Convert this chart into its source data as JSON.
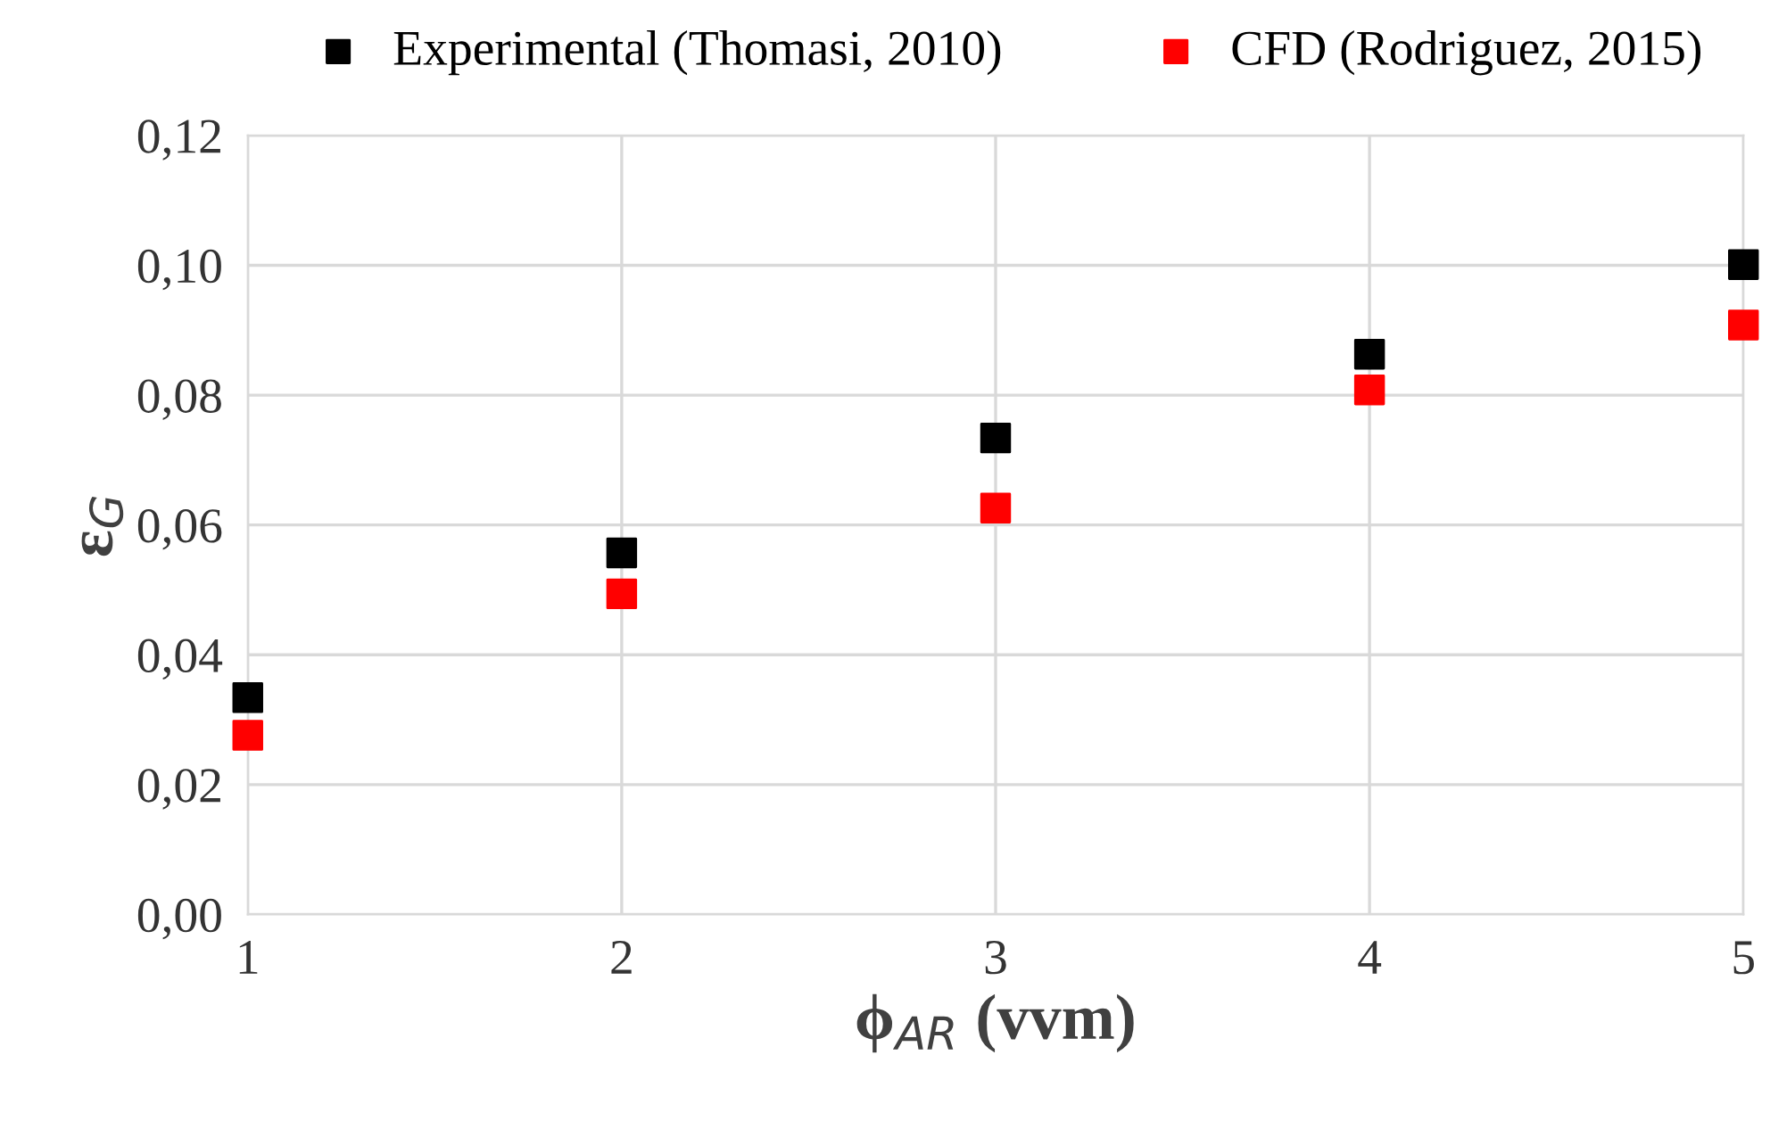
{
  "chart_data": {
    "type": "scatter",
    "xlabel": "ϕ$_{AR}$ (vvm)",
    "ylabel": "ε$_{G}$",
    "x": [
      1,
      2,
      3,
      4,
      5
    ],
    "series": [
      {
        "name": "Experimental (Thomasi, 2010)",
        "color": "#000000",
        "values": [
          0.0334,
          0.0557,
          0.0734,
          0.0863,
          0.1001
        ]
      },
      {
        "name": "CFD (Rodriguez, 2015)",
        "color": "#ff0000",
        "values": [
          0.0276,
          0.0494,
          0.0626,
          0.0808,
          0.0908
        ]
      }
    ],
    "xlim": [
      1,
      5
    ],
    "xticks": [
      1,
      2,
      3,
      4,
      5
    ],
    "ylim": [
      0,
      0.12
    ],
    "yticks": [
      {
        "value": 0,
        "label": "0,00"
      },
      {
        "value": 0.02,
        "label": "0,02"
      },
      {
        "value": 0.04,
        "label": "0,04"
      },
      {
        "value": 0.06,
        "label": "0,06"
      },
      {
        "value": 0.08,
        "label": "0,08"
      },
      {
        "value": 0.1,
        "label": "0,10"
      },
      {
        "value": 0.12,
        "label": "0,12"
      }
    ],
    "grid": true,
    "legend": "top",
    "marker": "square"
  }
}
